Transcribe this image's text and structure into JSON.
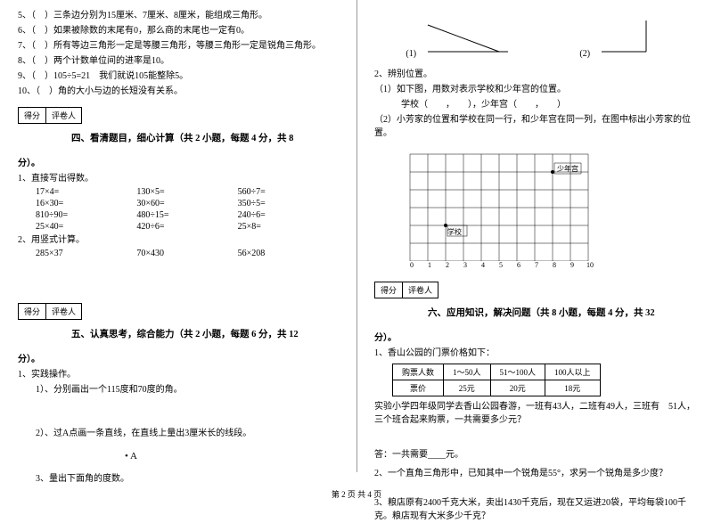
{
  "left": {
    "judge": [
      "5、（　）三条边分别为15厘米、7厘米、8厘米，能组成三角形。",
      "6、（　）如果被除数的末尾有0，那么商的末尾也一定有0。",
      "7、（　）所有等边三角形一定是等腰三角形，等腰三角形一定是锐角三角形。",
      "8、（　）两个计数单位间的进率是10。",
      "9、（　）105÷5=21　我们就说105能整除5。",
      "10、（　）角的大小与边的长短没有关系。"
    ],
    "score_labels": [
      "得分",
      "评卷人"
    ],
    "section4_title": "四、看清题目，细心计算（共 2 小题，每题 4 分，共 8",
    "fen": "分）。",
    "q1_title": "1、直接写出得数。",
    "calc_rows": [
      [
        "17×4=",
        "130×5=",
        "560÷7="
      ],
      [
        "16×30=",
        "30×60=",
        "350÷5="
      ],
      [
        "810÷90=",
        "480÷15=",
        "240÷6="
      ],
      [
        "25×40=",
        "420÷6=",
        "25×8="
      ]
    ],
    "q2_title": "2、用竖式计算。",
    "vert_calc": [
      "285×37",
      "70×430",
      "56×208"
    ],
    "section5_title": "五、认真思考，综合能力（共 2 小题，每题 6 分，共 12",
    "practice_title": "1、实践操作。",
    "p1": "1）、分别画出一个115度和70度的角。",
    "p2": "2）、过A点画一条直线，在直线上量出3厘米长的线段。",
    "dot_a": "• A",
    "p3": "3、量出下面角的度数。"
  },
  "right": {
    "angle_labels": [
      "(1)",
      "(2)"
    ],
    "q2_title": "2、辨别位置。",
    "q2_1": "（1）如下图，用数对表示学校和少年宫的位置。",
    "q2_1_blank": "　　　学校（　　，　　），少年宫（　　，　　）",
    "q2_2": "（2）小芳家的位置和学校在同一行，和少年宫在同一列，在图中标出小芳家的位置。",
    "grid": {
      "cols": 11,
      "rows": 7,
      "cell": 20,
      "school_label": "学校",
      "school_pos": [
        2,
        2
      ],
      "palace_label": "少年宫",
      "palace_pos": [
        8,
        5
      ],
      "x_labels": [
        "0",
        "1",
        "2",
        "3",
        "4",
        "5",
        "6",
        "7",
        "8",
        "9",
        "10"
      ]
    },
    "score_labels": [
      "得分",
      "评卷人"
    ],
    "section6_title": "六、应用知识，解决问题（共 8 小题，每题 4 分，共 32",
    "fen": "分）。",
    "q1": "1、香山公园的门票价格如下：",
    "table": {
      "headers": [
        "购票人数",
        "1～50人",
        "51～100人",
        "100人以上"
      ],
      "row": [
        "票价",
        "25元",
        "20元",
        "18元"
      ]
    },
    "q1_text": "实验小学四年级同学去香山公园春游，一班有43人，二班有49人，三班有　51人，三个班合起来购票，一共需要多少元？",
    "q1_ans": "答：一共需要____元。",
    "q2": "2、一个直角三角形中，已知其中一个锐角是55°，求另一个锐角是多少度？",
    "q3": "3、粮店原有2400千克大米，卖出1430千克后，现在又运进20袋，平均每袋100千克。粮店现有大米多少千克？"
  },
  "footer": "第 2 页 共 4 页"
}
